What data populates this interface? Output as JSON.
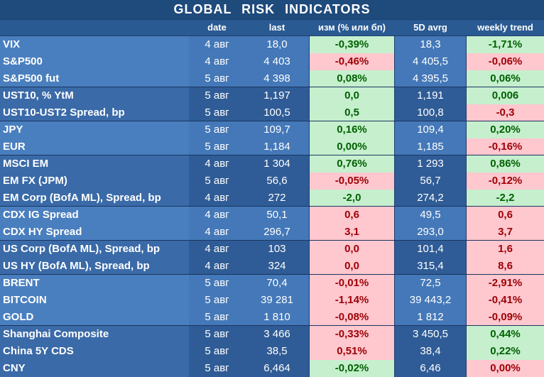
{
  "title": "GLOBAL  RISK  INDICATORS",
  "headers": [
    "",
    "date",
    "last",
    "изм (% или бп)",
    "5D avrg",
    "weekly trend"
  ],
  "rows": [
    {
      "name": "VIX",
      "date": "4 авг",
      "last": "18,0",
      "chg": "-0,39%",
      "chg_sign": "pos",
      "avg": "18,3",
      "trend": "-1,71%",
      "trend_sign": "pos",
      "shade": "light"
    },
    {
      "name": "S&P500",
      "date": "4 авг",
      "last": "4 403",
      "chg": "-0,46%",
      "chg_sign": "neg",
      "avg": "4 405,5",
      "trend": "-0,06%",
      "trend_sign": "neg",
      "shade": "light"
    },
    {
      "name": "S&P500 fut",
      "date": "5 авг",
      "last": "4 398",
      "chg": "0,08%",
      "chg_sign": "pos",
      "avg": "4 395,5",
      "trend": "0,06%",
      "trend_sign": "pos",
      "shade": "light"
    },
    {
      "name": "UST10, % YtM",
      "date": "5 авг",
      "last": "1,197",
      "chg": "0,0",
      "chg_sign": "pos",
      "avg": "1,191",
      "trend": "0,006",
      "trend_sign": "pos",
      "shade": "dark"
    },
    {
      "name": "UST10-UST2 Spread, bp",
      "date": "5 авг",
      "last": "100,5",
      "chg": "0,5",
      "chg_sign": "pos",
      "avg": "100,8",
      "trend": "-0,3",
      "trend_sign": "neg",
      "shade": "dark"
    },
    {
      "name": "JPY",
      "date": "5 авг",
      "last": "109,7",
      "chg": "0,16%",
      "chg_sign": "pos",
      "avg": "109,4",
      "trend": "0,20%",
      "trend_sign": "pos",
      "shade": "light"
    },
    {
      "name": "EUR",
      "date": "5 авг",
      "last": "1,184",
      "chg": "0,00%",
      "chg_sign": "pos",
      "avg": "1,185",
      "trend": "-0,16%",
      "trend_sign": "neg",
      "shade": "light"
    },
    {
      "name": "MSCI EM",
      "date": "4 авг",
      "last": "1 304",
      "chg": "0,76%",
      "chg_sign": "pos",
      "avg": "1 293",
      "trend": "0,86%",
      "trend_sign": "pos",
      "shade": "dark"
    },
    {
      "name": "EM FX (JPM)",
      "date": "5 авг",
      "last": "56,6",
      "chg": "-0,05%",
      "chg_sign": "neg",
      "avg": "56,7",
      "trend": "-0,12%",
      "trend_sign": "neg",
      "shade": "dark"
    },
    {
      "name": "EM Corp (BofA ML), Spread, bp",
      "date": "4 авг",
      "last": "272",
      "chg": "-2,0",
      "chg_sign": "pos",
      "avg": "274,2",
      "trend": "-2,2",
      "trend_sign": "pos",
      "shade": "dark"
    },
    {
      "name": "CDX IG Spread",
      "date": "4 авг",
      "last": "50,1",
      "chg": "0,6",
      "chg_sign": "neg",
      "avg": "49,5",
      "trend": "0,6",
      "trend_sign": "neg",
      "shade": "light"
    },
    {
      "name": "CDX HY Spread",
      "date": "4 авг",
      "last": "296,7",
      "chg": "3,1",
      "chg_sign": "neg",
      "avg": "293,0",
      "trend": "3,7",
      "trend_sign": "neg",
      "shade": "light"
    },
    {
      "name": "US Corp (BofA ML), Spread, bp",
      "date": "4 авг",
      "last": "103",
      "chg": "0,0",
      "chg_sign": "neg",
      "avg": "101,4",
      "trend": "1,6",
      "trend_sign": "neg",
      "shade": "dark"
    },
    {
      "name": "US HY (BofA ML), Spread, bp",
      "date": "4 авг",
      "last": "324",
      "chg": "0,0",
      "chg_sign": "neg",
      "avg": "315,4",
      "trend": "8,6",
      "trend_sign": "neg",
      "shade": "dark"
    },
    {
      "name": "BRENT",
      "date": "5 авг",
      "last": "70,4",
      "chg": "-0,01%",
      "chg_sign": "neg",
      "avg": "72,5",
      "trend": "-2,91%",
      "trend_sign": "neg",
      "shade": "light"
    },
    {
      "name": "BITCOIN",
      "date": "5 авг",
      "last": "39 281",
      "chg": "-1,14%",
      "chg_sign": "neg",
      "avg": "39 443,2",
      "trend": "-0,41%",
      "trend_sign": "neg",
      "shade": "light"
    },
    {
      "name": "GOLD",
      "date": "5 авг",
      "last": "1 810",
      "chg": "-0,08%",
      "chg_sign": "neg",
      "avg": "1 812",
      "trend": "-0,09%",
      "trend_sign": "neg",
      "shade": "light"
    },
    {
      "name": "Shanghai Composite",
      "date": "5 авг",
      "last": "3 466",
      "chg": "-0,33%",
      "chg_sign": "neg",
      "avg": "3 450,5",
      "trend": "0,44%",
      "trend_sign": "pos",
      "shade": "dark"
    },
    {
      "name": "China 5Y CDS",
      "date": "5 авг",
      "last": "38,5",
      "chg": "0,51%",
      "chg_sign": "neg",
      "avg": "38,4",
      "trend": "0,22%",
      "trend_sign": "pos",
      "shade": "dark"
    },
    {
      "name": "CNY",
      "date": "5 авг",
      "last": "6,464",
      "chg": "-0,02%",
      "chg_sign": "pos",
      "avg": "6,46",
      "trend": "0,00%",
      "trend_sign": "neg",
      "shade": "dark"
    }
  ],
  "colors": {
    "positive_bg": "#c6efce",
    "positive_text": "#006100",
    "negative_bg": "#ffc7ce",
    "negative_text": "#9c0006"
  }
}
